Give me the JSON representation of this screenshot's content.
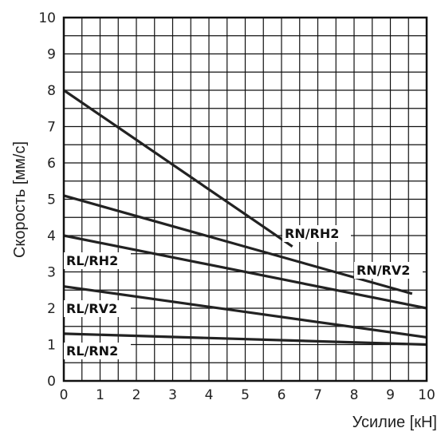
{
  "chart_data": {
    "type": "line",
    "xlabel": "Усилие [кН]",
    "ylabel": "Скорость [мм/с]",
    "xlim": [
      0,
      10
    ],
    "ylim": [
      0,
      10
    ],
    "x_ticks": [
      "0",
      "1",
      "2",
      "3",
      "4",
      "5",
      "6",
      "7",
      "8",
      "9",
      "10"
    ],
    "y_ticks": [
      "0",
      "1",
      "2",
      "3",
      "4",
      "5",
      "6",
      "7",
      "8",
      "9",
      "10"
    ],
    "grid": "on, 0.5 step",
    "series": [
      {
        "name": "RN/RH2",
        "x": [
          0,
          6.3
        ],
        "y": [
          8.0,
          3.7
        ]
      },
      {
        "name": "RN/RV2",
        "x": [
          0,
          9.6
        ],
        "y": [
          5.1,
          2.4
        ]
      },
      {
        "name": "RL/RH2",
        "x": [
          0,
          10
        ],
        "y": [
          4.0,
          2.0
        ]
      },
      {
        "name": "RL/RV2",
        "x": [
          0,
          10
        ],
        "y": [
          2.6,
          1.2
        ]
      },
      {
        "name": "RL/RN2",
        "x": [
          0,
          10
        ],
        "y": [
          1.3,
          1.0
        ]
      }
    ]
  }
}
